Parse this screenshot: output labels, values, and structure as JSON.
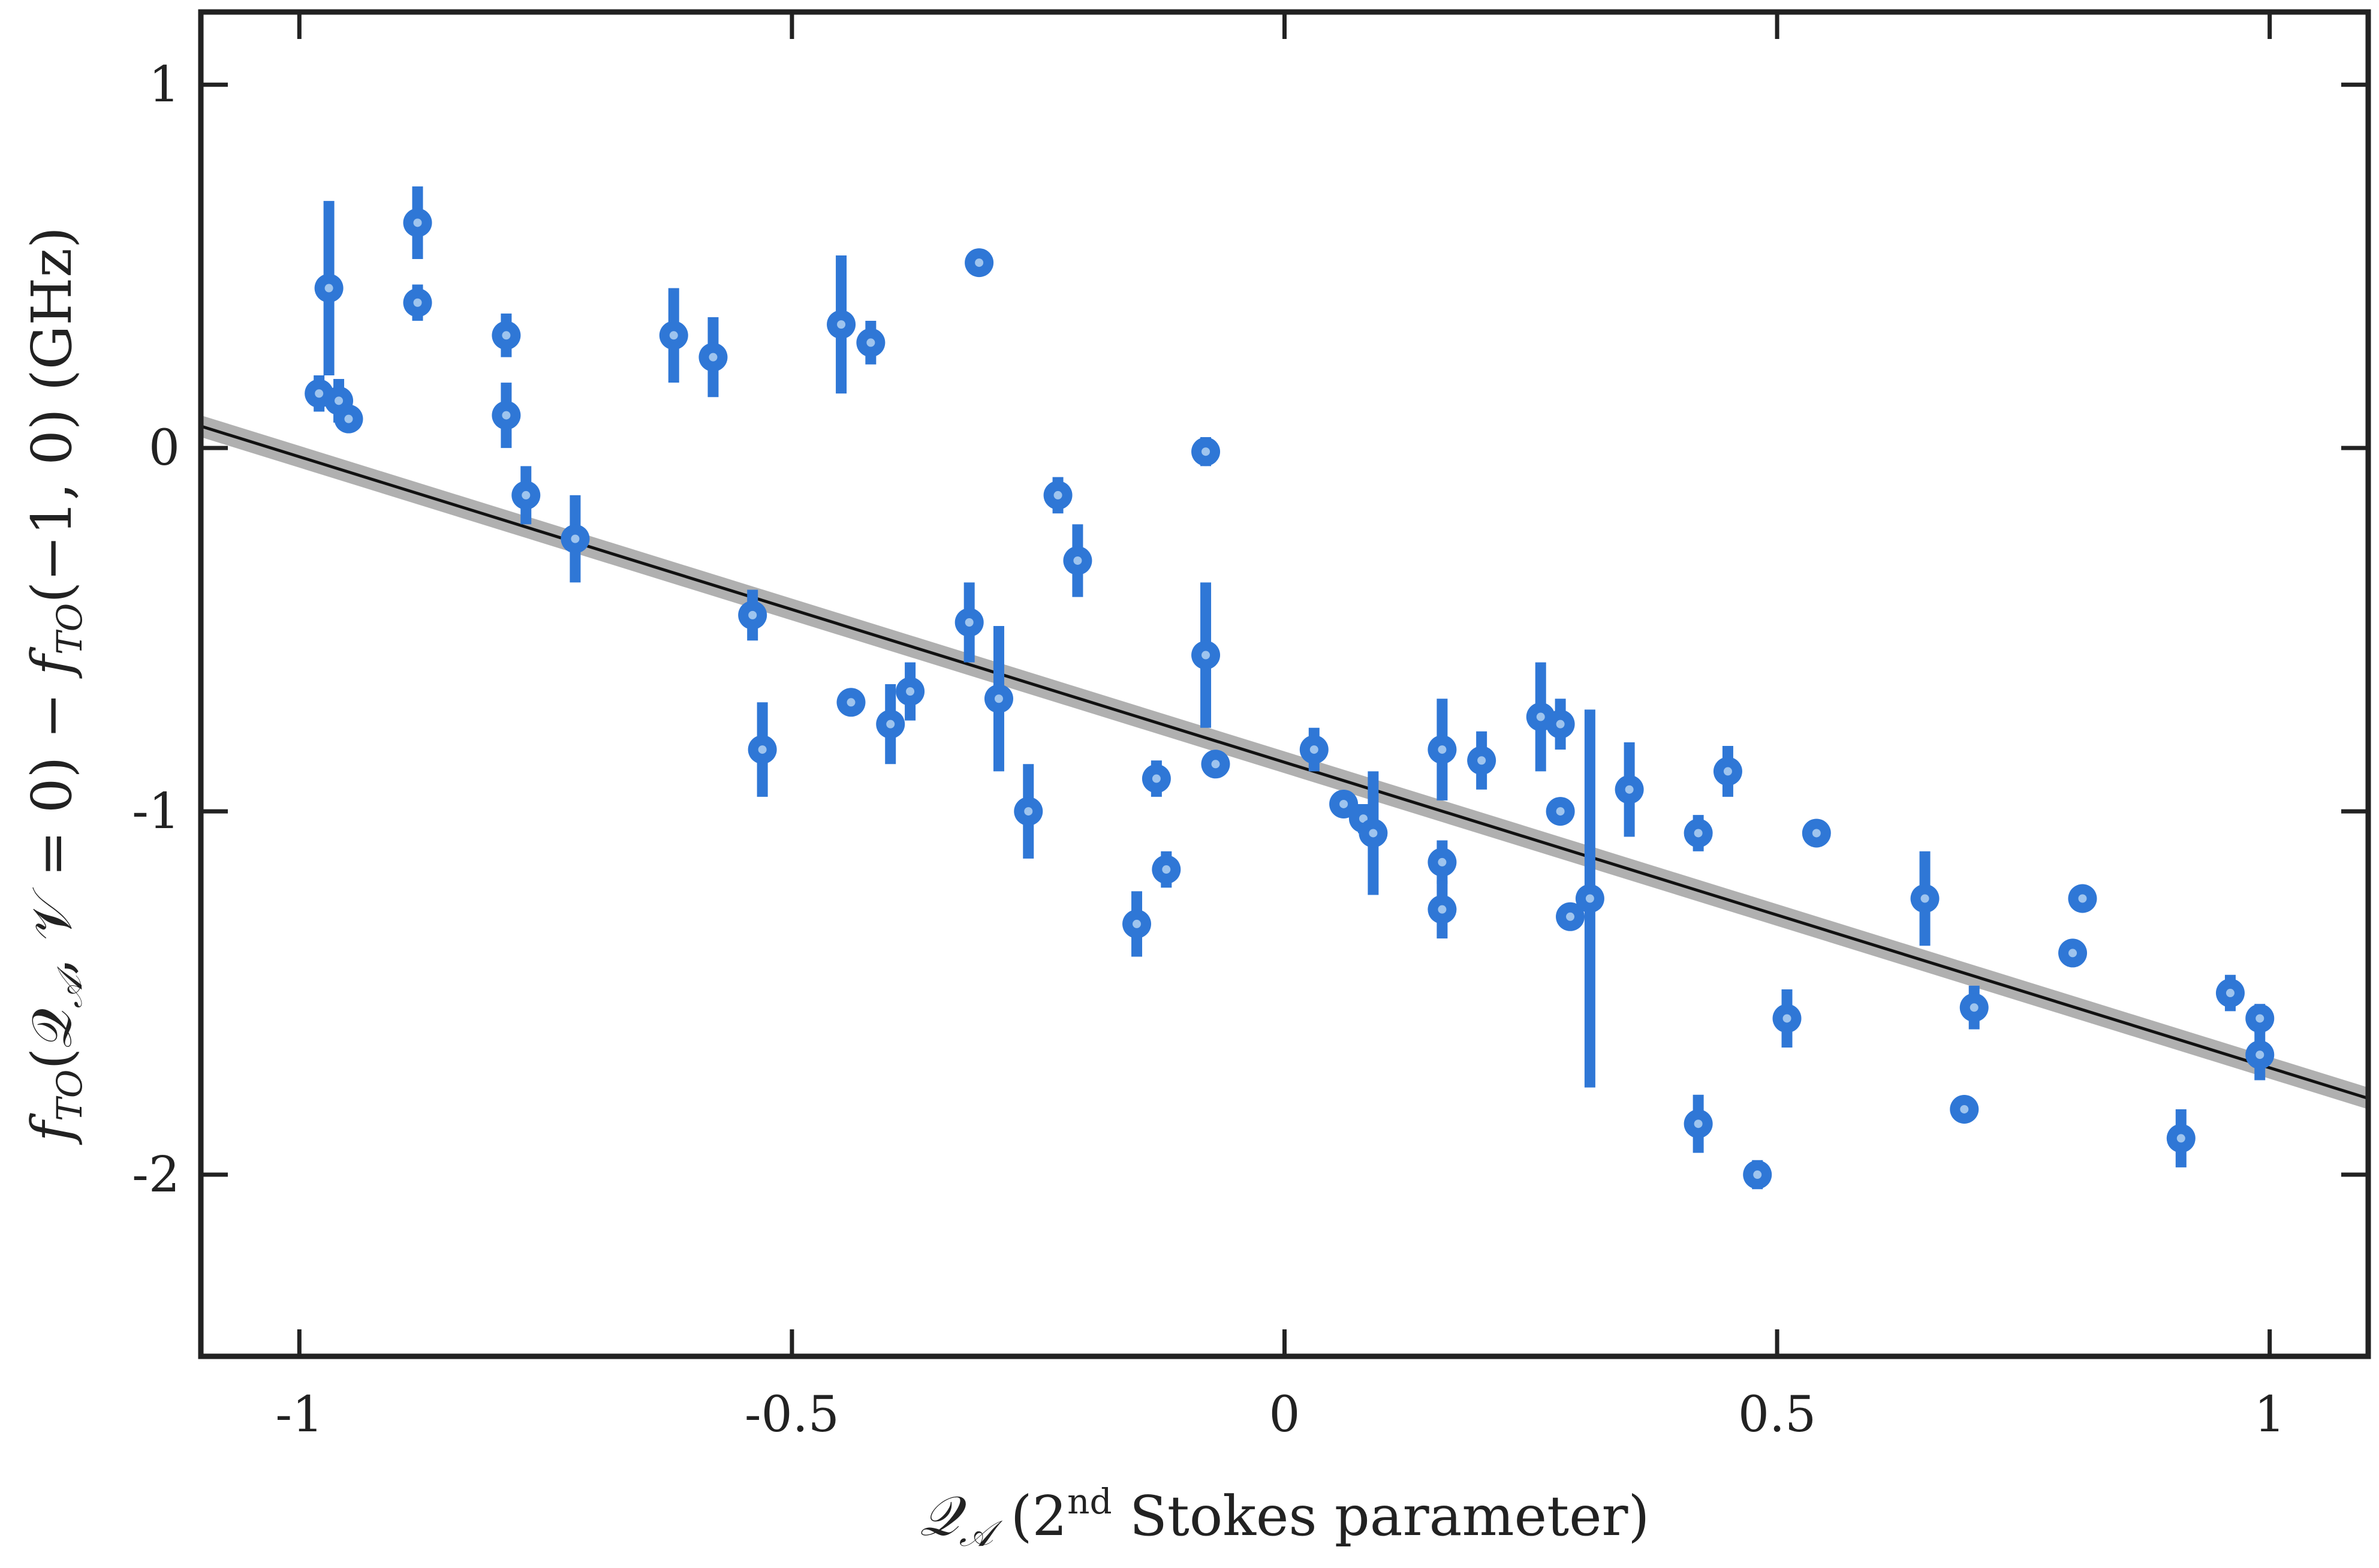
{
  "chart_data": {
    "type": "scatter",
    "xlabel_parts": {
      "symbol": "𝒬",
      "symbol_sub": "𝒜",
      "paren_open": " (2",
      "sup": "nd",
      "rest": " Stokes parameter)"
    },
    "ylabel_parts": {
      "f1": "f",
      "s1": "TO",
      "mid1": "(𝒬",
      "s2": "𝒜",
      "mid2": ", 𝒱 = 0) − ",
      "f2": "f",
      "s3": "TO",
      "tail": "(−1, 0) (GHz)"
    },
    "xlim": [
      -1.1,
      1.1
    ],
    "ylim": [
      -2.5,
      1.2
    ],
    "x_ticks": [
      -1,
      -0.5,
      0,
      0.5,
      1
    ],
    "x_tick_labels": [
      "-1",
      "-0.5",
      "0",
      "0.5",
      "1"
    ],
    "y_ticks": [
      1,
      0,
      -1,
      -2
    ],
    "y_tick_labels": [
      "1",
      "0",
      "-1",
      "-2"
    ],
    "grid": false,
    "legend": "none",
    "colors": {
      "points": "#2f77d6",
      "point_center": "#9ec4ee",
      "fit_line": "#111111",
      "fit_band": "#b0b0b0",
      "axes": "#222222"
    },
    "fit": {
      "x": [
        -1.1,
        1.1
      ],
      "y": [
        0.06,
        -1.79
      ],
      "band_halfwidth": 0.03
    },
    "points": [
      {
        "x": -0.98,
        "y": 0.15,
        "err": 0.05
      },
      {
        "x": -0.97,
        "y": 0.44,
        "err": 0.24
      },
      {
        "x": -0.96,
        "y": 0.13,
        "err": 0.06
      },
      {
        "x": -0.95,
        "y": 0.08,
        "err": 0.0
      },
      {
        "x": -0.88,
        "y": 0.62,
        "err": 0.1
      },
      {
        "x": -0.88,
        "y": 0.4,
        "err": 0.05
      },
      {
        "x": -0.79,
        "y": 0.31,
        "err": 0.06
      },
      {
        "x": -0.79,
        "y": 0.09,
        "err": 0.09
      },
      {
        "x": -0.77,
        "y": -0.13,
        "err": 0.08
      },
      {
        "x": -0.72,
        "y": -0.25,
        "err": 0.12
      },
      {
        "x": -0.62,
        "y": 0.31,
        "err": 0.13
      },
      {
        "x": -0.58,
        "y": 0.25,
        "err": 0.11
      },
      {
        "x": -0.54,
        "y": -0.46,
        "err": 0.07
      },
      {
        "x": -0.53,
        "y": -0.83,
        "err": 0.13
      },
      {
        "x": -0.45,
        "y": 0.34,
        "err": 0.19
      },
      {
        "x": -0.44,
        "y": -0.7,
        "err": 0.0
      },
      {
        "x": -0.42,
        "y": 0.29,
        "err": 0.06
      },
      {
        "x": -0.4,
        "y": -0.76,
        "err": 0.11
      },
      {
        "x": -0.38,
        "y": -0.67,
        "err": 0.08
      },
      {
        "x": -0.32,
        "y": -0.48,
        "err": 0.11
      },
      {
        "x": -0.31,
        "y": 0.51,
        "err": 0.0
      },
      {
        "x": -0.29,
        "y": -0.69,
        "err": 0.2
      },
      {
        "x": -0.26,
        "y": -1.0,
        "err": 0.13
      },
      {
        "x": -0.23,
        "y": -0.13,
        "err": 0.05
      },
      {
        "x": -0.21,
        "y": -0.31,
        "err": 0.1
      },
      {
        "x": -0.15,
        "y": -1.31,
        "err": 0.09
      },
      {
        "x": -0.13,
        "y": -0.91,
        "err": 0.05
      },
      {
        "x": -0.12,
        "y": -1.16,
        "err": 0.05
      },
      {
        "x": -0.08,
        "y": -0.01,
        "err": 0.04
      },
      {
        "x": -0.08,
        "y": -0.57,
        "err": 0.2
      },
      {
        "x": -0.07,
        "y": -0.87,
        "err": 0.0
      },
      {
        "x": 0.03,
        "y": -0.83,
        "err": 0.06
      },
      {
        "x": 0.06,
        "y": -0.98,
        "err": 0.0
      },
      {
        "x": 0.08,
        "y": -1.02,
        "err": 0.04
      },
      {
        "x": 0.09,
        "y": -1.06,
        "err": 0.17
      },
      {
        "x": 0.16,
        "y": -1.14,
        "err": 0.06
      },
      {
        "x": 0.16,
        "y": -0.83,
        "err": 0.14
      },
      {
        "x": 0.16,
        "y": -1.27,
        "err": 0.08
      },
      {
        "x": 0.2,
        "y": -0.86,
        "err": 0.08
      },
      {
        "x": 0.26,
        "y": -0.74,
        "err": 0.15
      },
      {
        "x": 0.28,
        "y": -0.76,
        "err": 0.07
      },
      {
        "x": 0.28,
        "y": -1.0,
        "err": 0.0
      },
      {
        "x": 0.29,
        "y": -1.29,
        "err": 0.0
      },
      {
        "x": 0.31,
        "y": -1.24,
        "err": 0.52
      },
      {
        "x": 0.35,
        "y": -0.94,
        "err": 0.13
      },
      {
        "x": 0.42,
        "y": -1.06,
        "err": 0.05
      },
      {
        "x": 0.42,
        "y": -1.86,
        "err": 0.08
      },
      {
        "x": 0.45,
        "y": -0.89,
        "err": 0.07
      },
      {
        "x": 0.48,
        "y": -2.0,
        "err": 0.04
      },
      {
        "x": 0.51,
        "y": -1.57,
        "err": 0.08
      },
      {
        "x": 0.54,
        "y": -1.06,
        "err": 0.0
      },
      {
        "x": 0.65,
        "y": -1.24,
        "err": 0.13
      },
      {
        "x": 0.69,
        "y": -1.82,
        "err": 0.0
      },
      {
        "x": 0.7,
        "y": -1.54,
        "err": 0.06
      },
      {
        "x": 0.8,
        "y": -1.39,
        "err": 0.0
      },
      {
        "x": 0.81,
        "y": -1.24,
        "err": 0.0
      },
      {
        "x": 0.91,
        "y": -1.9,
        "err": 0.08
      },
      {
        "x": 0.96,
        "y": -1.5,
        "err": 0.05
      },
      {
        "x": 0.99,
        "y": -1.57,
        "err": 0.04
      },
      {
        "x": 0.99,
        "y": -1.67,
        "err": 0.07
      }
    ]
  }
}
